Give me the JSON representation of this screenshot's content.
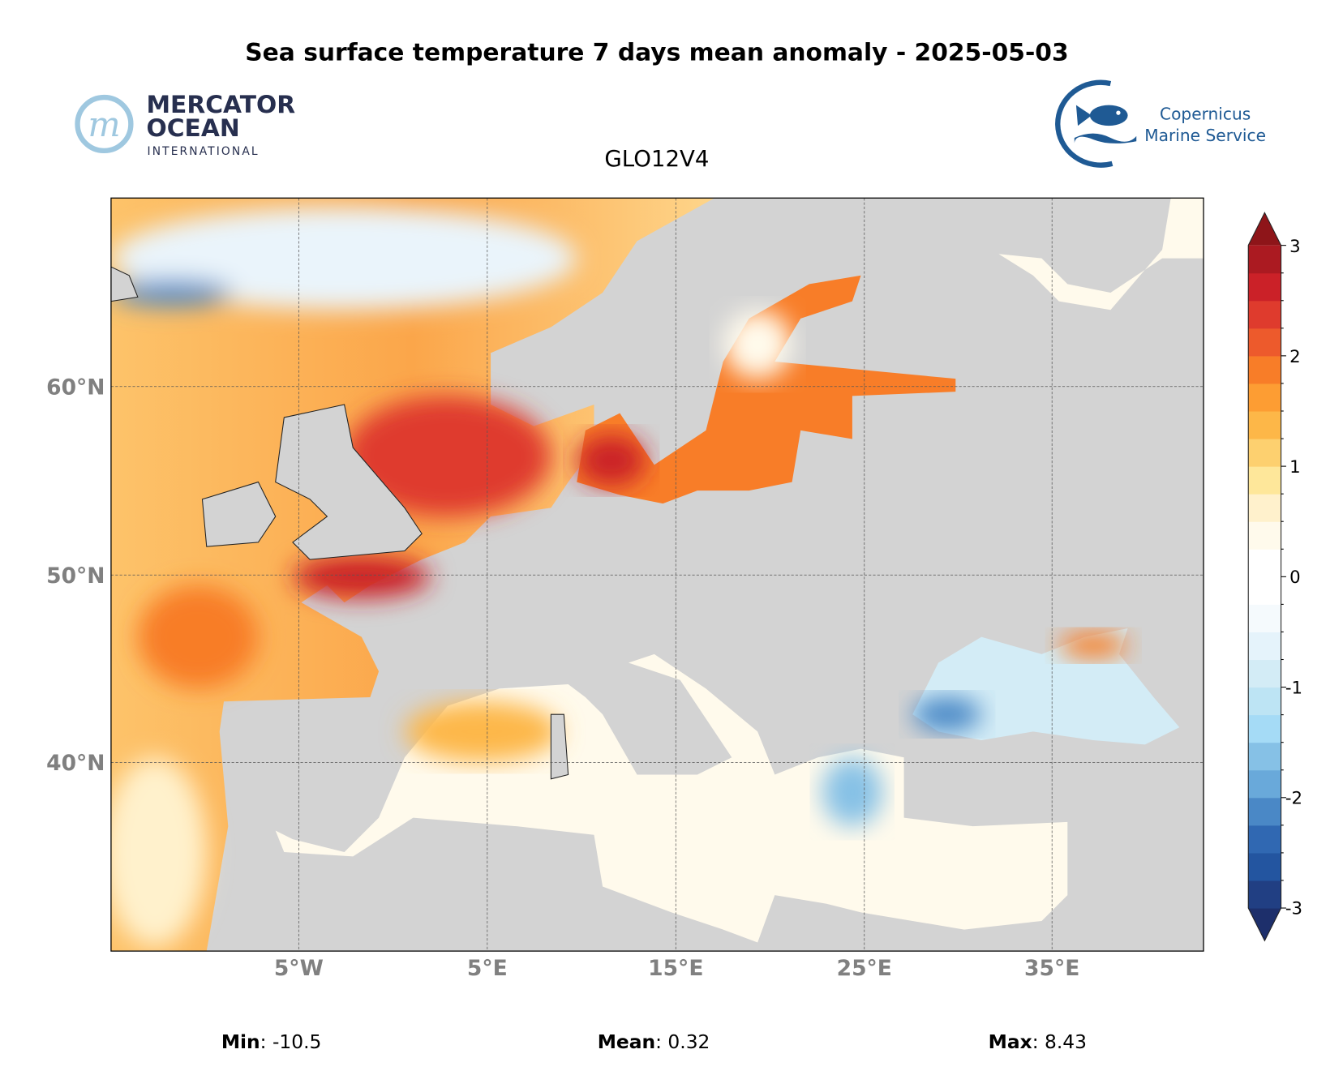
{
  "title": "Sea surface temperature 7 days mean anomaly - 2025-05-03",
  "subtitle": "GLO12V4",
  "logos": {
    "left": {
      "line1": "MERCATOR",
      "line2": "OCEAN",
      "line3": "INTERNATIONAL"
    },
    "right": {
      "line1": "Copernicus",
      "line2": "Marine Service"
    }
  },
  "axes": {
    "lat_labels": [
      "60°N",
      "50°N",
      "40°N"
    ],
    "lon_labels": [
      "5°W",
      "5°E",
      "15°E",
      "25°E",
      "35°E"
    ]
  },
  "colorbar": {
    "ticks": [
      "3",
      "2",
      "1",
      "0",
      "-1",
      "-2",
      "-3"
    ],
    "range": [
      -3,
      3
    ],
    "colors": [
      "#1d2f6b",
      "#213f83",
      "#2355a0",
      "#3068b2",
      "#4a88c6",
      "#69a9da",
      "#86c1e6",
      "#a5dbf6",
      "#bde4f4",
      "#d3ecf6",
      "#e5f3fb",
      "#f5fafd",
      "#ffffff",
      "#ffffff",
      "#fffaec",
      "#fff1cc",
      "#fee79a",
      "#fdd06f",
      "#fdb748",
      "#fd9d33",
      "#f87d28",
      "#ed5a2c",
      "#df3b2d",
      "#cb2128",
      "#ab1a21",
      "#8e1519"
    ]
  },
  "stats": {
    "min_label": "Min",
    "min_value": ": -10.5",
    "mean_label": "Mean",
    "mean_value": ": 0.32",
    "max_label": "Max",
    "max_value": ": 8.43"
  }
}
